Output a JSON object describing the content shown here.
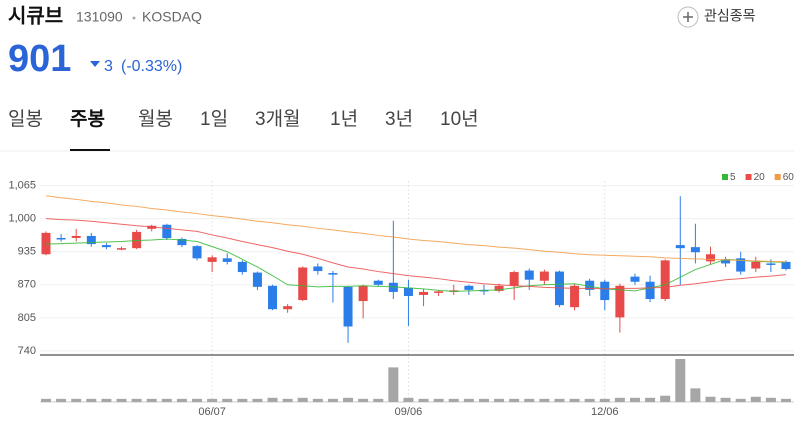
{
  "header": {
    "name": "시큐브",
    "code": "131090",
    "market": "KOSDAQ",
    "price": "901",
    "change": "3",
    "change_pct": "(-0.33%)",
    "watch_button": "관심종목"
  },
  "tabs": {
    "items": [
      "일봉",
      "주봉",
      "월봉",
      "1일",
      "3개월",
      "1년",
      "3년",
      "10년"
    ]
  },
  "chart_data": {
    "type": "candlestick",
    "categories": [
      null,
      null,
      null,
      null,
      null,
      null,
      null,
      null,
      null,
      null,
      null,
      "06/07",
      null,
      null,
      null,
      null,
      null,
      null,
      null,
      null,
      null,
      null,
      null,
      null,
      "09/06",
      null,
      null,
      null,
      null,
      null,
      null,
      null,
      null,
      null,
      null,
      null,
      null,
      "12/06",
      null,
      null,
      null,
      null,
      null,
      null,
      null,
      null,
      null,
      null,
      null,
      null
    ],
    "open": [
      930,
      962,
      962,
      966,
      948,
      940,
      942,
      980,
      988,
      960,
      946,
      915,
      922,
      915,
      894,
      868,
      822,
      840,
      906,
      893,
      866,
      838,
      878,
      874,
      864,
      850,
      854,
      856,
      868,
      860,
      858,
      868,
      898,
      878,
      896,
      826,
      878,
      876,
      806,
      886,
      876,
      842,
      948,
      944,
      916,
      920,
      922,
      902,
      912,
      915
    ],
    "high": [
      975,
      970,
      980,
      972,
      952,
      945,
      978,
      988,
      990,
      963,
      948,
      928,
      932,
      918,
      896,
      870,
      832,
      906,
      912,
      897,
      868,
      870,
      880,
      996,
      880,
      862,
      860,
      870,
      870,
      870,
      872,
      898,
      902,
      900,
      898,
      872,
      882,
      880,
      872,
      892,
      888,
      920,
      1044,
      990,
      945,
      925,
      935,
      925,
      920,
      918
    ],
    "low": [
      928,
      955,
      955,
      945,
      940,
      938,
      940,
      975,
      958,
      944,
      918,
      895,
      910,
      890,
      860,
      820,
      815,
      838,
      890,
      835,
      756,
      804,
      868,
      842,
      789,
      828,
      848,
      850,
      850,
      850,
      855,
      840,
      860,
      870,
      826,
      820,
      848,
      820,
      776,
      870,
      836,
      838,
      870,
      912,
      910,
      905,
      890,
      895,
      895,
      898
    ],
    "close": [
      972,
      960,
      966,
      950,
      944,
      942,
      974,
      986,
      962,
      948,
      922,
      924,
      915,
      895,
      866,
      822,
      828,
      904,
      897,
      890,
      788,
      868,
      870,
      856,
      848,
      856,
      857,
      859,
      860,
      858,
      868,
      895,
      880,
      896,
      830,
      868,
      860,
      840,
      868,
      876,
      842,
      918,
      942,
      934,
      930,
      912,
      896,
      915,
      910,
      901
    ],
    "ma": [
      {
        "name": "5",
        "color": "#33b833",
        "values": [
          950,
          951,
          952,
          953,
          954,
          955,
          957,
          958,
          960,
          958,
          955,
          945,
          935,
          920,
          905,
          888,
          870,
          868,
          866,
          867,
          867,
          868,
          867,
          866,
          864,
          862,
          859,
          857,
          858,
          859,
          860,
          864,
          868,
          870,
          871,
          872,
          867,
          862,
          860,
          858,
          864,
          870,
          885,
          900,
          910,
          920,
          918,
          916,
          915,
          914
        ]
      },
      {
        "name": "20",
        "color": "#ea4b4b",
        "values": [
          1000,
          998,
          997,
          995,
          992,
          989,
          986,
          984,
          981,
          978,
          975,
          968,
          962,
          955,
          949,
          943,
          936,
          930,
          922,
          913,
          905,
          901,
          896,
          892,
          888,
          885,
          882,
          878,
          875,
          872,
          870,
          868,
          867,
          865,
          864,
          863,
          863,
          862,
          863,
          863,
          864,
          865,
          869,
          872,
          876,
          880,
          882,
          885,
          887,
          890
        ]
      },
      {
        "name": "60",
        "color": "#f39a45",
        "values": [
          1045,
          1041,
          1038,
          1034,
          1031,
          1027,
          1024,
          1020,
          1017,
          1013,
          1010,
          1006,
          1003,
          999,
          995,
          992,
          988,
          985,
          981,
          978,
          974,
          971,
          967,
          964,
          960,
          957,
          955,
          952,
          949,
          947,
          944,
          942,
          939,
          936,
          934,
          931,
          929,
          928,
          927,
          926,
          925,
          923,
          922,
          921,
          920,
          919,
          918,
          917,
          916,
          915
        ]
      }
    ],
    "volume": [
      3,
      3,
      3,
      3,
      3,
      3,
      3,
      3,
      3,
      3,
      3,
      3,
      3,
      3,
      3,
      4,
      3,
      4,
      3,
      3,
      4,
      3,
      3,
      33,
      4,
      3,
      3,
      3,
      3,
      3,
      3,
      3,
      3,
      3,
      3,
      3,
      3,
      3,
      4,
      4,
      4,
      6,
      41,
      13,
      5,
      4,
      3,
      5,
      4,
      3
    ],
    "ylim": [
      732,
      1074
    ],
    "yticks": [
      740,
      805,
      870,
      935,
      {
        "value": 1000,
        "label": "1,000"
      },
      {
        "value": 1065,
        "label": "1,065"
      }
    ],
    "up_color": "#e84a4a",
    "down_color": "#2b7de9",
    "volume_color": "#a6a6a6",
    "grid": true,
    "legend": "top-right"
  }
}
